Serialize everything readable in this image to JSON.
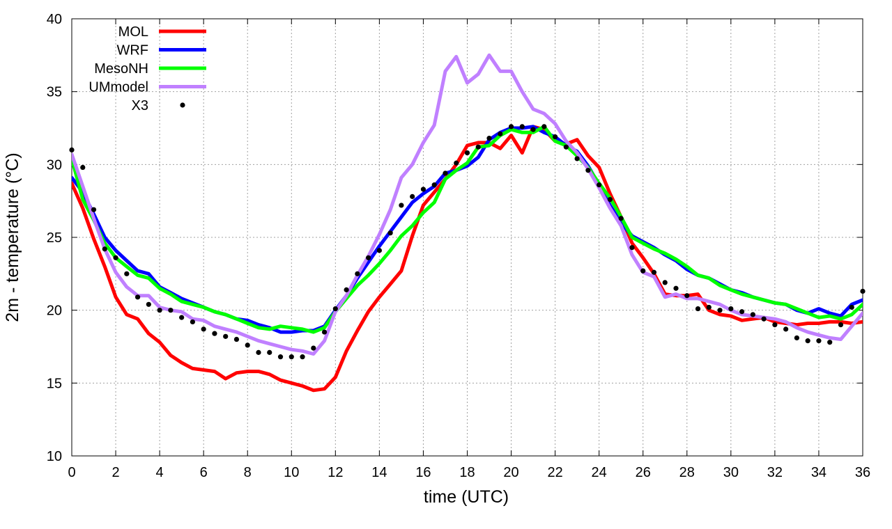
{
  "chart_data": {
    "type": "line",
    "title": "",
    "xlabel": "time (UTC)",
    "ylabel": "2m - temperature (°C)",
    "xlim": [
      0,
      36
    ],
    "ylim": [
      10,
      40
    ],
    "xticks": [
      0,
      2,
      4,
      6,
      8,
      10,
      12,
      14,
      16,
      18,
      20,
      22,
      24,
      26,
      28,
      30,
      32,
      34,
      36
    ],
    "yticks": [
      10,
      15,
      20,
      25,
      30,
      35,
      40
    ],
    "grid": true,
    "legend_position": "top-left",
    "series": [
      {
        "name": "MOL",
        "color": "#ff0000",
        "style": "line",
        "x": [
          0,
          0.5,
          1,
          1.5,
          2,
          2.5,
          3,
          3.5,
          4,
          4.5,
          5,
          5.5,
          6,
          6.5,
          7,
          7.5,
          8,
          8.5,
          9,
          9.5,
          10,
          10.5,
          11,
          11.5,
          12,
          12.5,
          13,
          13.5,
          14,
          14.5,
          15,
          15.5,
          16,
          16.5,
          17,
          17.5,
          18,
          18.5,
          19,
          19.5,
          20,
          20.5,
          21,
          21.5,
          22,
          22.5,
          23,
          23.5,
          24,
          24.5,
          25,
          25.5,
          26,
          26.5,
          27,
          27.5,
          28,
          28.5,
          29,
          29.5,
          30,
          30.5,
          31,
          31.5,
          32,
          32.5,
          33,
          33.5,
          34,
          34.5,
          35,
          35.5,
          36
        ],
        "values": [
          28.7,
          27.0,
          24.9,
          23.0,
          20.9,
          19.7,
          19.4,
          18.4,
          17.8,
          16.9,
          16.4,
          16.0,
          15.9,
          15.8,
          15.3,
          15.7,
          15.8,
          15.8,
          15.6,
          15.2,
          15.0,
          14.8,
          14.5,
          14.6,
          15.4,
          17.2,
          18.6,
          19.9,
          20.9,
          21.8,
          22.7,
          25.1,
          27.2,
          28.1,
          29.0,
          30.0,
          31.3,
          31.5,
          31.5,
          31.1,
          32.0,
          30.8,
          32.6,
          32.4,
          31.6,
          31.4,
          31.7,
          30.6,
          29.8,
          28.0,
          26.4,
          24.6,
          23.6,
          22.5,
          21.1,
          21.0,
          21.0,
          21.1,
          20.0,
          19.7,
          19.6,
          19.3,
          19.4,
          19.5,
          19.2,
          19.1,
          19.0,
          19.1,
          19.1,
          19.2,
          19.2,
          19.1,
          19.2
        ]
      },
      {
        "name": "WRF",
        "color": "#0000ff",
        "style": "line",
        "x": [
          0,
          0.5,
          1,
          1.5,
          2,
          2.5,
          3,
          3.5,
          4,
          4.5,
          5,
          5.5,
          6,
          6.5,
          7,
          7.5,
          8,
          8.5,
          9,
          9.5,
          10,
          10.5,
          11,
          11.5,
          12,
          12.5,
          13,
          13.5,
          14,
          14.5,
          15,
          15.5,
          16,
          16.5,
          17,
          17.5,
          18,
          18.5,
          19,
          19.5,
          20,
          20.5,
          21,
          21.5,
          22,
          22.5,
          23,
          23.5,
          24,
          24.5,
          25,
          25.5,
          26,
          26.5,
          27,
          27.5,
          28,
          28.5,
          29,
          29.5,
          30,
          30.5,
          31,
          31.5,
          32,
          32.5,
          33,
          33.5,
          34,
          34.5,
          35,
          35.5,
          36
        ],
        "values": [
          29.1,
          28.1,
          26.6,
          25.0,
          24.1,
          23.4,
          22.7,
          22.5,
          21.6,
          21.2,
          20.8,
          20.5,
          20.2,
          19.9,
          19.7,
          19.4,
          19.3,
          19.0,
          18.8,
          18.5,
          18.5,
          18.6,
          18.6,
          18.9,
          20.0,
          21.0,
          22.2,
          23.3,
          24.4,
          25.4,
          26.4,
          27.4,
          28.0,
          28.5,
          29.4,
          29.6,
          29.9,
          30.5,
          31.7,
          32.2,
          32.5,
          32.5,
          32.6,
          32.2,
          31.9,
          31.3,
          30.9,
          29.9,
          28.6,
          27.2,
          26.0,
          25.1,
          24.7,
          24.3,
          23.8,
          23.4,
          22.8,
          22.4,
          22.2,
          21.8,
          21.4,
          21.2,
          20.9,
          20.7,
          20.5,
          20.4,
          20.0,
          19.8,
          20.1,
          19.8,
          19.6,
          20.4,
          20.7
        ]
      },
      {
        "name": "MesoNH",
        "color": "#00ff00",
        "style": "line",
        "x": [
          0,
          0.5,
          1,
          1.5,
          2,
          2.5,
          3,
          3.5,
          4,
          4.5,
          5,
          5.5,
          6,
          6.5,
          7,
          7.5,
          8,
          8.5,
          9,
          9.5,
          10,
          10.5,
          11,
          11.5,
          12,
          12.5,
          13,
          13.5,
          14,
          14.5,
          15,
          15.5,
          16,
          16.5,
          17,
          17.5,
          18,
          18.5,
          19,
          19.5,
          20,
          20.5,
          21,
          21.5,
          22,
          22.5,
          23,
          23.5,
          24,
          24.5,
          25,
          25.5,
          26,
          26.5,
          27,
          27.5,
          28,
          28.5,
          29,
          29.5,
          30,
          30.5,
          31,
          31.5,
          32,
          32.5,
          33,
          33.5,
          34,
          34.5,
          35,
          35.5,
          36
        ],
        "values": [
          30.4,
          27.6,
          26.2,
          24.6,
          23.6,
          23.0,
          22.4,
          22.2,
          21.5,
          21.1,
          20.6,
          20.4,
          20.2,
          19.9,
          19.7,
          19.4,
          19.1,
          18.8,
          18.7,
          18.9,
          18.8,
          18.7,
          18.5,
          18.8,
          19.9,
          20.8,
          21.7,
          22.4,
          23.2,
          24.1,
          25.1,
          25.8,
          26.7,
          27.4,
          29.0,
          29.6,
          30.1,
          31.2,
          31.3,
          32.0,
          32.4,
          32.2,
          32.2,
          32.6,
          31.6,
          31.3,
          30.6,
          29.8,
          28.7,
          27.7,
          26.4,
          25.0,
          24.6,
          24.2,
          23.9,
          23.5,
          23.0,
          22.4,
          22.2,
          21.7,
          21.4,
          21.1,
          20.9,
          20.7,
          20.5,
          20.4,
          20.1,
          19.8,
          19.5,
          19.6,
          19.4,
          19.7,
          20.4
        ]
      },
      {
        "name": "UMmodel",
        "color": "#c080ff",
        "style": "line",
        "x": [
          0,
          0.5,
          1,
          1.5,
          2,
          2.5,
          3,
          3.5,
          4,
          4.5,
          5,
          5.5,
          6,
          6.5,
          7,
          7.5,
          8,
          8.5,
          9,
          9.5,
          10,
          10.5,
          11,
          11.5,
          12,
          12.5,
          13,
          13.5,
          14,
          14.5,
          15,
          15.5,
          16,
          16.5,
          17,
          17.5,
          18,
          18.5,
          19,
          19.5,
          20,
          20.5,
          21,
          21.5,
          22,
          22.5,
          23,
          23.5,
          24,
          24.5,
          25,
          25.5,
          26,
          26.5,
          27,
          27.5,
          28,
          28.5,
          29,
          29.5,
          30,
          30.5,
          31,
          31.5,
          32,
          32.5,
          33,
          33.5,
          34,
          34.5,
          35,
          35.5,
          36
        ],
        "values": [
          30.7,
          28.5,
          26.3,
          24.2,
          22.6,
          21.6,
          21.0,
          21.0,
          20.2,
          20.0,
          19.9,
          19.4,
          19.3,
          18.9,
          18.7,
          18.5,
          18.2,
          17.9,
          17.7,
          17.5,
          17.3,
          17.2,
          17.0,
          17.9,
          19.9,
          21.0,
          22.4,
          23.7,
          25.2,
          26.9,
          29.1,
          30.0,
          31.5,
          32.7,
          36.4,
          37.4,
          35.6,
          36.2,
          37.5,
          36.4,
          36.4,
          35.0,
          33.8,
          33.5,
          32.8,
          31.6,
          30.8,
          29.7,
          28.4,
          27.0,
          25.8,
          23.8,
          22.6,
          22.3,
          20.9,
          21.1,
          20.8,
          20.8,
          20.6,
          20.4,
          20.0,
          19.7,
          19.6,
          19.5,
          19.4,
          19.2,
          18.8,
          18.5,
          18.3,
          18.1,
          18.0,
          18.9,
          19.8
        ]
      },
      {
        "name": "X3",
        "color": "#000000",
        "style": "dots",
        "x": [
          0,
          0.5,
          1,
          1.5,
          2,
          2.5,
          3,
          3.5,
          4,
          4.5,
          5,
          5.5,
          6,
          6.5,
          7,
          7.5,
          8,
          8.5,
          9,
          9.5,
          10,
          10.5,
          11,
          11.5,
          12,
          12.5,
          13,
          13.5,
          14,
          14.5,
          15,
          15.5,
          16,
          16.5,
          17,
          17.5,
          18,
          18.5,
          19,
          19.5,
          20,
          20.5,
          21,
          21.5,
          22,
          22.5,
          23,
          23.5,
          24,
          24.5,
          25,
          25.5,
          26,
          26.5,
          27,
          27.5,
          28,
          28.5,
          29,
          29.5,
          30,
          30.5,
          31,
          31.5,
          32,
          32.5,
          33,
          33.5,
          34,
          34.5,
          35,
          35.5,
          36
        ],
        "values": [
          31.0,
          29.8,
          26.9,
          24.2,
          23.6,
          22.5,
          20.9,
          20.4,
          20.0,
          20.0,
          19.5,
          19.2,
          18.7,
          18.4,
          18.2,
          18.0,
          17.6,
          17.1,
          17.1,
          16.8,
          16.8,
          16.8,
          17.4,
          18.5,
          20.1,
          21.4,
          22.5,
          23.6,
          24.1,
          25.3,
          27.2,
          27.8,
          28.3,
          28.6,
          29.4,
          30.1,
          30.8,
          31.2,
          31.8,
          32.1,
          32.6,
          32.6,
          32.4,
          32.6,
          31.9,
          31.2,
          30.4,
          29.6,
          28.6,
          27.6,
          26.3,
          24.3,
          22.7,
          22.6,
          21.9,
          21.5,
          21.0,
          20.1,
          20.2,
          20.0,
          20.1,
          19.9,
          19.7,
          19.4,
          19.0,
          18.7,
          18.1,
          17.9,
          17.9,
          17.8,
          19.0,
          20.2,
          21.3
        ]
      }
    ]
  }
}
